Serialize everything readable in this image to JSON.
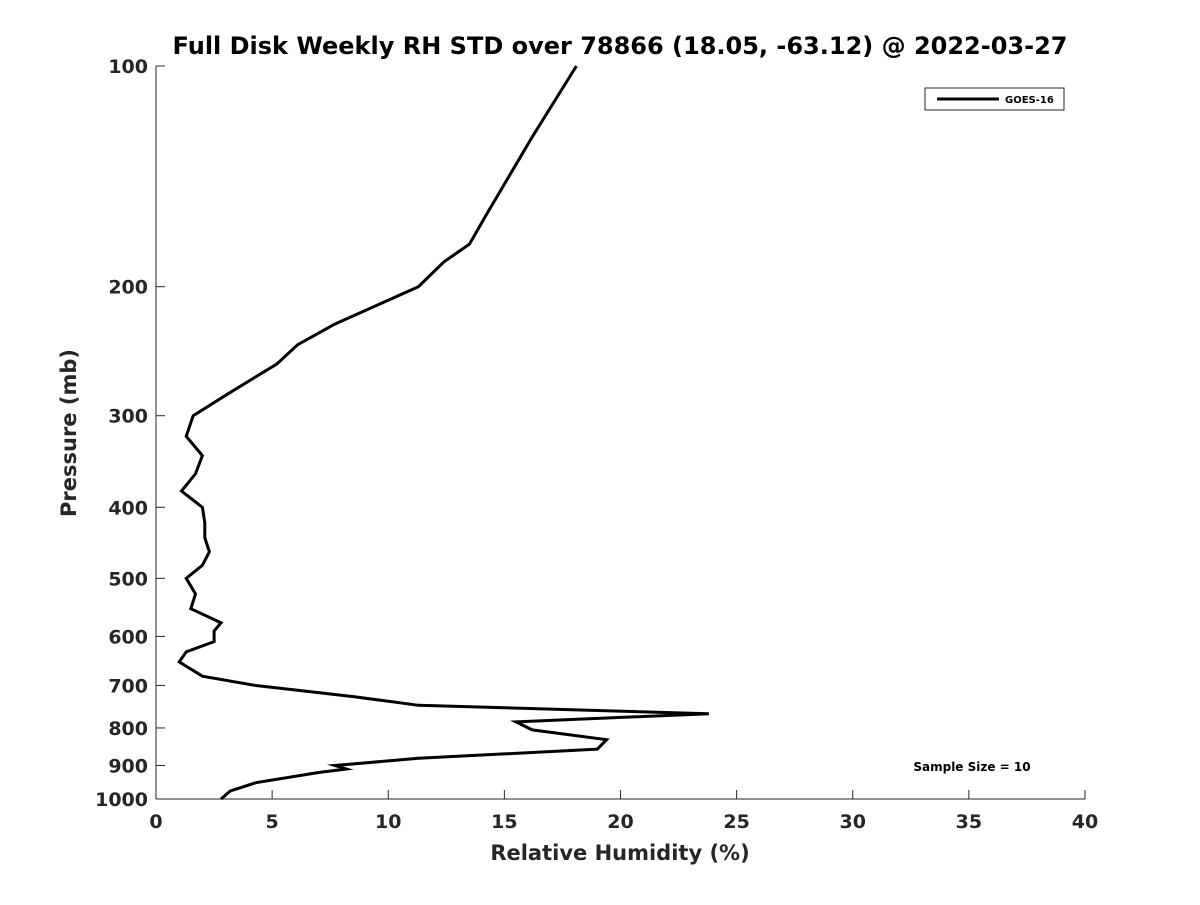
{
  "chart_data": {
    "type": "line",
    "title": "Full Disk Weekly RH STD over 78866 (18.05, -63.12) @ 2022-03-27",
    "xlabel": "Relative Humidity (%)",
    "ylabel": "Pressure (mb)",
    "xlim": [
      0,
      40
    ],
    "ylim": [
      100,
      1000
    ],
    "yscale": "log",
    "y_inverted": true,
    "grid": false,
    "legend_position": "top-right",
    "x_ticks": [
      0,
      5,
      10,
      15,
      20,
      25,
      30,
      35,
      40
    ],
    "x_tick_labels": [
      "0",
      "5",
      "10",
      "15",
      "20",
      "25",
      "30",
      "35",
      "40"
    ],
    "y_ticks": [
      100,
      200,
      300,
      400,
      500,
      600,
      700,
      800,
      900,
      1000
    ],
    "y_tick_labels": [
      "100",
      "200",
      "300",
      "400",
      "500",
      "600",
      "700",
      "800",
      "900",
      "1000"
    ],
    "series": [
      {
        "name": "GOES-16",
        "color": "#000000",
        "points": [
          [
            18.1,
            100
          ],
          [
            16.2,
            125
          ],
          [
            14.2,
            160
          ],
          [
            13.5,
            175
          ],
          [
            12.4,
            185
          ],
          [
            11.3,
            200
          ],
          [
            7.7,
            225
          ],
          [
            6.1,
            240
          ],
          [
            5.2,
            255
          ],
          [
            3.1,
            280
          ],
          [
            1.6,
            300
          ],
          [
            1.3,
            320
          ],
          [
            2.0,
            340
          ],
          [
            1.7,
            360
          ],
          [
            1.1,
            380
          ],
          [
            2.0,
            400
          ],
          [
            2.1,
            420
          ],
          [
            2.1,
            440
          ],
          [
            2.3,
            460
          ],
          [
            2.0,
            480
          ],
          [
            1.3,
            500
          ],
          [
            1.7,
            525
          ],
          [
            1.5,
            550
          ],
          [
            2.8,
            575
          ],
          [
            2.5,
            590
          ],
          [
            2.5,
            610
          ],
          [
            1.3,
            630
          ],
          [
            1.0,
            650
          ],
          [
            2.0,
            680
          ],
          [
            4.3,
            700
          ],
          [
            8.5,
            725
          ],
          [
            11.3,
            745
          ],
          [
            23.8,
            765
          ],
          [
            15.5,
            785
          ],
          [
            16.2,
            805
          ],
          [
            19.4,
            830
          ],
          [
            19.0,
            855
          ],
          [
            11.3,
            880
          ],
          [
            7.7,
            900
          ],
          [
            8.2,
            910
          ],
          [
            7.0,
            920
          ],
          [
            4.3,
            950
          ],
          [
            3.2,
            975
          ],
          [
            2.8,
            1000
          ]
        ]
      }
    ],
    "annotation": "Sample Size = 10"
  }
}
